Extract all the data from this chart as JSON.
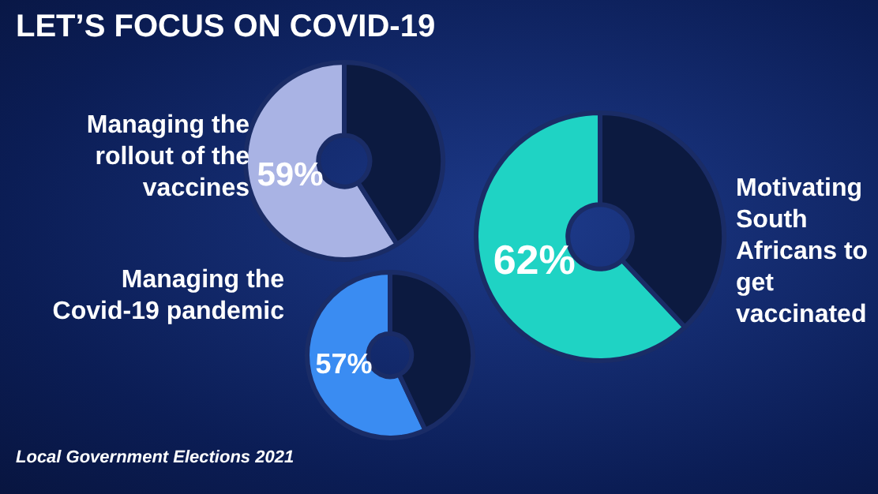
{
  "chart_data": [
    {
      "type": "other",
      "title": "LET’S FOCUS ON COVID-19",
      "annotations": [
        "Local Government Elections 2021"
      ]
    },
    {
      "type": "donut",
      "title": "Managing the rollout of the vaccines",
      "categories": [
        null,
        null
      ],
      "values": [
        59,
        41
      ],
      "colors": [
        "#a9b3e4",
        "#0c1a40"
      ],
      "value_labels": [
        "59%",
        null
      ],
      "legend": false
    },
    {
      "type": "donut",
      "title": "Motivating South Africans to get vaccinated",
      "categories": [
        null,
        null
      ],
      "values": [
        62,
        38
      ],
      "colors": [
        "#1fd3c4",
        "#0c1a40"
      ],
      "value_labels": [
        "62%",
        null
      ],
      "legend": false
    },
    {
      "type": "donut",
      "title": "Managing the Covid-19 pandemic",
      "categories": [
        null,
        null
      ],
      "values": [
        57,
        43
      ],
      "colors": [
        "#3a8cf2",
        "#0c1a40"
      ],
      "value_labels": [
        "57%",
        null
      ],
      "legend": false
    }
  ]
}
